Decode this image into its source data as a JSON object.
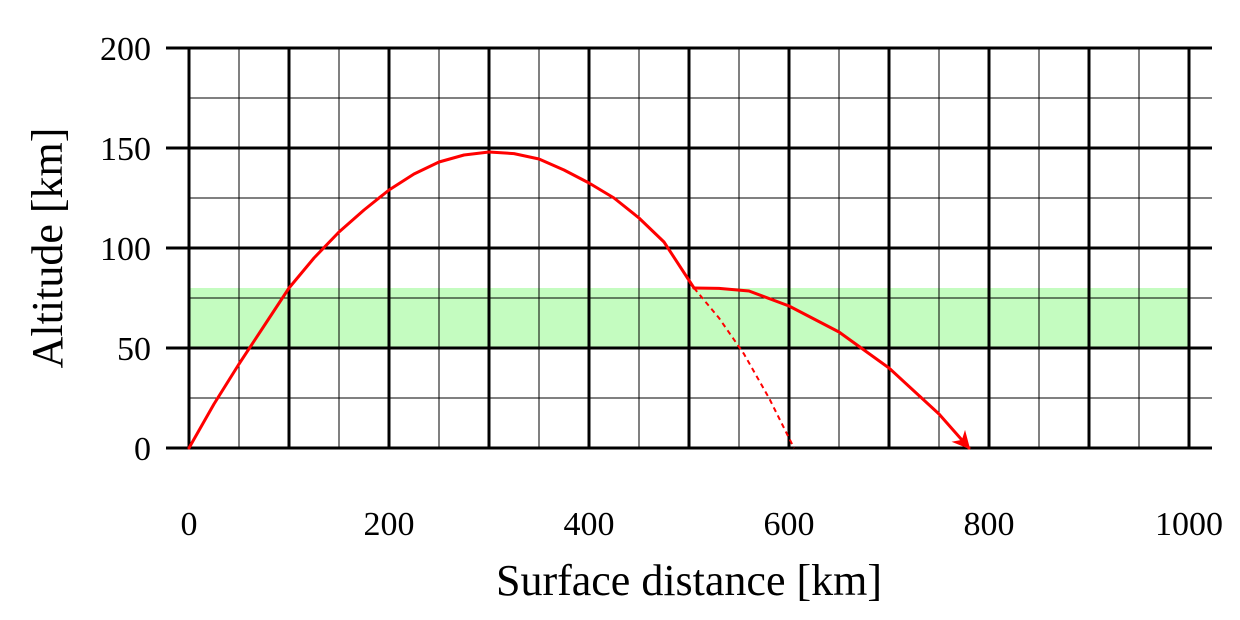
{
  "chart_data": {
    "type": "line",
    "title": "",
    "xlabel": "Surface distance [km]",
    "ylabel": "Altitude [km]",
    "xlim": [
      0,
      1000
    ],
    "ylim": [
      0,
      200
    ],
    "x_major_ticks": [
      0,
      200,
      400,
      600,
      800,
      1000
    ],
    "x_tick_labels": [
      "0",
      "200",
      "400",
      "600",
      "800",
      "1000"
    ],
    "y_major_ticks": [
      0,
      50,
      100,
      150,
      200
    ],
    "y_tick_labels": [
      "0",
      "50",
      "100",
      "150",
      "200"
    ],
    "x_gridlines_major": [
      0,
      100,
      200,
      300,
      400,
      500,
      600,
      700,
      800,
      900,
      1000
    ],
    "x_gridlines_minor": [
      50,
      150,
      250,
      350,
      450,
      550,
      650,
      750,
      850,
      950
    ],
    "y_gridlines_major": [
      0,
      50,
      100,
      150,
      200
    ],
    "y_gridlines_minor": [
      25,
      75,
      125,
      175
    ],
    "grid": true,
    "band": {
      "y_from": 50,
      "y_to": 80,
      "color": "#c4fcc0"
    },
    "series": [
      {
        "name": "trajectory",
        "style": "solid",
        "color": "#ff0000",
        "points": [
          [
            0,
            0
          ],
          [
            25,
            22
          ],
          [
            50,
            42
          ],
          [
            75,
            61
          ],
          [
            100,
            80
          ],
          [
            125,
            95
          ],
          [
            150,
            108
          ],
          [
            175,
            119
          ],
          [
            200,
            129
          ],
          [
            225,
            137
          ],
          [
            250,
            143
          ],
          [
            275,
            146.5
          ],
          [
            300,
            148
          ],
          [
            325,
            147.2
          ],
          [
            350,
            144.5
          ],
          [
            375,
            139
          ],
          [
            400,
            132.5
          ],
          [
            425,
            125
          ],
          [
            450,
            115
          ],
          [
            475,
            103
          ],
          [
            505,
            80
          ]
        ]
      },
      {
        "name": "glide-trajectory",
        "style": "solid",
        "color": "#ff0000",
        "arrow_end": true,
        "points": [
          [
            505,
            80
          ],
          [
            530,
            79.8
          ],
          [
            560,
            78.5
          ],
          [
            600,
            71
          ],
          [
            650,
            58
          ],
          [
            700,
            40
          ],
          [
            750,
            17
          ],
          [
            780,
            0
          ]
        ]
      },
      {
        "name": "ballistic-continuation",
        "style": "dashed",
        "color": "#ff0000",
        "points": [
          [
            505,
            80
          ],
          [
            530,
            65
          ],
          [
            555,
            47
          ],
          [
            580,
            25
          ],
          [
            605,
            0
          ]
        ]
      }
    ]
  }
}
